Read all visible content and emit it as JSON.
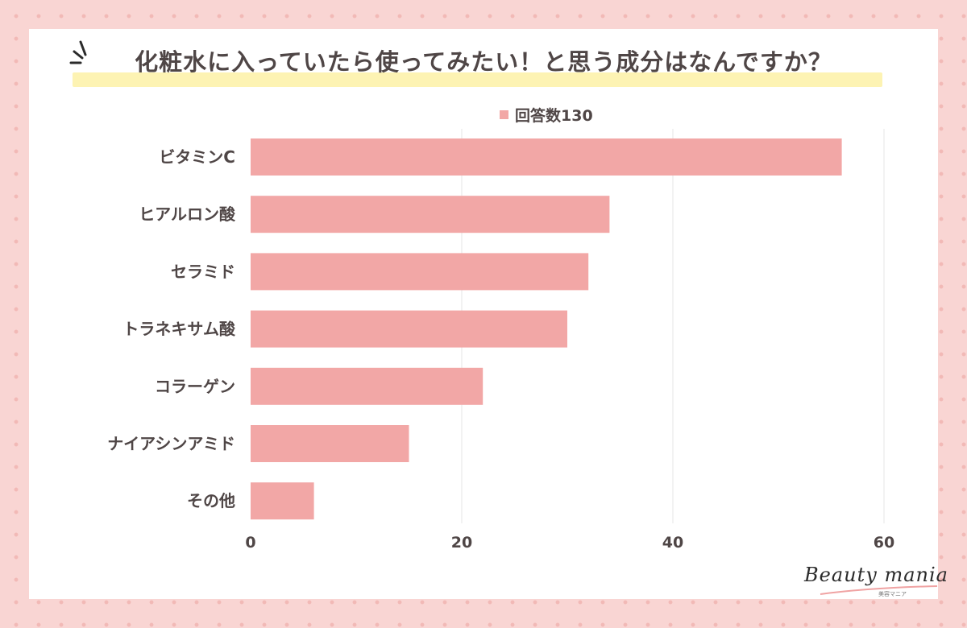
{
  "title": "化粧水に入っていたら使ってみたい！と思う成分はなんですか？",
  "legend": {
    "label": "回答数130",
    "color": "#f2a7a6"
  },
  "brand": {
    "name": "Beauty mania",
    "sub": "美容マニア"
  },
  "chart_data": {
    "type": "bar",
    "orientation": "horizontal",
    "categories": [
      "ビタミンC",
      "ヒアルロン酸",
      "セラミド",
      "トラネキサム酸",
      "コラーゲン",
      "ナイアシンアミド",
      "その他"
    ],
    "series": [
      {
        "name": "回答数130",
        "values": [
          56,
          34,
          32,
          30,
          22,
          15,
          6
        ]
      }
    ],
    "xlim": [
      0,
      60
    ],
    "xticks": [
      0,
      20,
      40,
      60
    ],
    "grid": true,
    "legend_position": "top",
    "bar_color": "#f2a7a6"
  }
}
